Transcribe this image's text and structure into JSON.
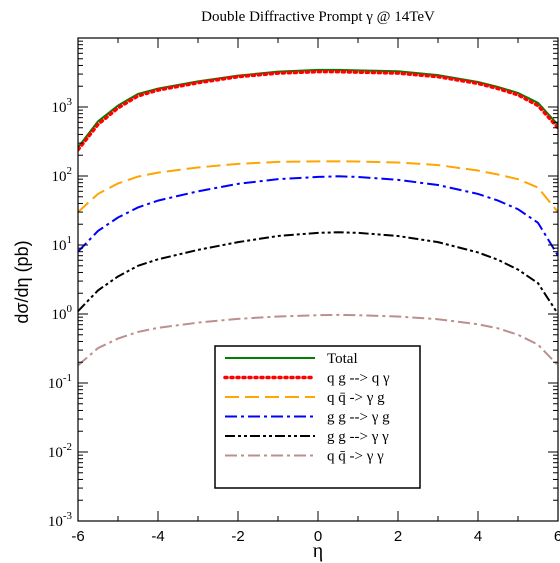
{
  "chart_data": {
    "type": "line",
    "title": "Double Diffractive Prompt γ @ 14TeV",
    "xlabel": "η",
    "ylabel": "dσ/dη (pb)",
    "xlim": [
      -6,
      6
    ],
    "ylim": [
      0.001,
      10000
    ],
    "yscale": "log",
    "grid": false,
    "legend_position": "bottom-center",
    "x_ticks": [
      -6,
      -4,
      -2,
      0,
      2,
      4,
      6
    ],
    "x_tick_labels": [
      "-6",
      "-4",
      "-2",
      "0",
      "2",
      "4",
      "6"
    ],
    "y_ticks": [
      0.001,
      0.01,
      0.1,
      1,
      10,
      100,
      1000
    ],
    "y_tick_labels": [
      {
        "base": "10",
        "exp": "-3"
      },
      {
        "base": "10",
        "exp": "-2"
      },
      {
        "base": "10",
        "exp": "-1"
      },
      {
        "base": "10",
        "exp": "0"
      },
      {
        "base": "10",
        "exp": "1"
      },
      {
        "base": "10",
        "exp": "2"
      },
      {
        "base": "10",
        "exp": "3"
      }
    ],
    "x": [
      -6,
      -5.5,
      -5,
      -4.5,
      -4,
      -3,
      -2,
      -1,
      0,
      0.5,
      1,
      2,
      3,
      4,
      4.5,
      5,
      5.5,
      6
    ],
    "series": [
      {
        "name": "Total",
        "color": "#008000",
        "dash": "solid",
        "values": [
          260,
          620,
          1050,
          1550,
          1850,
          2350,
          2850,
          3250,
          3450,
          3450,
          3400,
          3300,
          2900,
          2300,
          1950,
          1600,
          1150,
          550
        ]
      },
      {
        "name": "q g --> q γ",
        "color": "#ff0000",
        "dash": "dotted",
        "values": [
          240,
          560,
          970,
          1450,
          1760,
          2250,
          2750,
          3100,
          3250,
          3250,
          3200,
          3100,
          2750,
          2200,
          1850,
          1500,
          1050,
          500
        ]
      },
      {
        "name": "q q̄ -> γ g",
        "color": "#ffa500",
        "dash": "longdash",
        "values": [
          30,
          55,
          78,
          98,
          112,
          133,
          150,
          160,
          163,
          163,
          162,
          157,
          144,
          120,
          105,
          90,
          68,
          30
        ]
      },
      {
        "name": "g g --> γ g",
        "color": "#0000ff",
        "dash": "dashdot",
        "values": [
          8,
          16,
          25,
          35,
          44,
          60,
          77,
          90,
          97,
          99,
          97,
          88,
          74,
          55,
          44,
          33,
          21,
          7
        ]
      },
      {
        "name": "g g --> γ γ",
        "color": "#000000",
        "dash": "dashdotdot",
        "values": [
          1.1,
          2.2,
          3.5,
          5.0,
          6.2,
          8.5,
          11.0,
          13.5,
          15.0,
          15.3,
          15.0,
          13.5,
          11.0,
          7.8,
          6.1,
          4.4,
          2.8,
          1.0
        ]
      },
      {
        "name": "q q̄ -> γ γ",
        "color": "#bc8f8f",
        "dash": "dashdot",
        "values": [
          0.18,
          0.32,
          0.44,
          0.55,
          0.63,
          0.75,
          0.85,
          0.92,
          0.96,
          0.97,
          0.96,
          0.92,
          0.84,
          0.71,
          0.62,
          0.5,
          0.36,
          0.18
        ]
      }
    ]
  }
}
